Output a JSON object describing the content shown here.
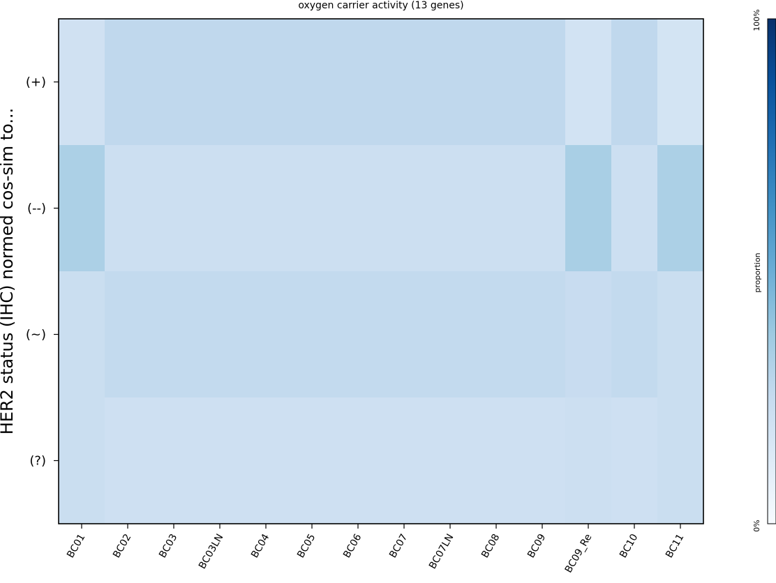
{
  "chart_data": {
    "type": "heatmap",
    "title": "oxygen carrier activity (13 genes)",
    "ylabel": "HER2 status (IHC) normed cos-sim to...",
    "xlabel": "",
    "columns": [
      "BC01",
      "BC02",
      "BC03",
      "BC03LN",
      "BC04",
      "BC05",
      "BC06",
      "BC07",
      "BC07LN",
      "BC08",
      "BC09",
      "BC09_Re",
      "BC10",
      "BC11"
    ],
    "rows": [
      "(+)",
      "(--)",
      "(~)",
      "(?)"
    ],
    "values": [
      [
        0.2,
        0.27,
        0.27,
        0.27,
        0.27,
        0.27,
        0.27,
        0.27,
        0.27,
        0.27,
        0.27,
        0.19,
        0.27,
        0.18
      ],
      [
        0.33,
        0.22,
        0.22,
        0.22,
        0.22,
        0.22,
        0.22,
        0.22,
        0.22,
        0.22,
        0.22,
        0.34,
        0.22,
        0.33
      ],
      [
        0.23,
        0.26,
        0.26,
        0.26,
        0.26,
        0.26,
        0.26,
        0.26,
        0.26,
        0.26,
        0.26,
        0.24,
        0.26,
        0.23
      ],
      [
        0.23,
        0.21,
        0.21,
        0.21,
        0.21,
        0.21,
        0.21,
        0.21,
        0.21,
        0.21,
        0.21,
        0.22,
        0.21,
        0.23
      ]
    ],
    "value_range": [
      0,
      1
    ],
    "colorbar": {
      "label": "proportion",
      "min_label": "0%",
      "max_label": "100%"
    },
    "colormap": "Blues"
  }
}
